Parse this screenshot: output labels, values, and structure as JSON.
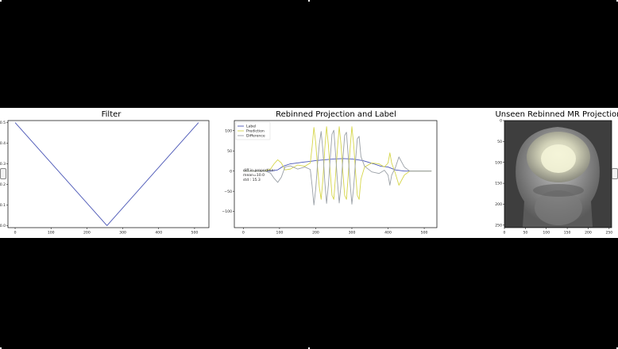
{
  "chart_data": [
    {
      "type": "line",
      "title": "Filter",
      "xlim": [
        -20,
        540
      ],
      "ylim": [
        -0.01,
        0.51
      ],
      "xticks": [
        0,
        100,
        200,
        300,
        400,
        500
      ],
      "yticks": [
        0.0,
        0.1,
        0.2,
        0.3,
        0.4,
        0.5
      ],
      "ytick_labels": [
        "0.0",
        "0.1",
        "0.2",
        "0.3",
        "0.4",
        "0.5"
      ],
      "series": [
        {
          "color": "#4a56b6",
          "x": [
            0,
            256,
            511
          ],
          "y": [
            0.5,
            0.0,
            0.5
          ]
        }
      ]
    },
    {
      "type": "line",
      "title": "Rebinned Projection and Label",
      "xlim": [
        -25,
        535
      ],
      "ylim": [
        -140,
        125
      ],
      "xticks": [
        0,
        100,
        200,
        300,
        400,
        500
      ],
      "yticks": [
        -100,
        -50,
        0,
        50,
        100
      ],
      "ytick_labels": [
        "−100",
        "−50",
        "0",
        "50",
        "100"
      ],
      "legend": {
        "placement": "top-left",
        "entries": [
          "Label",
          "Prediction",
          "Difference"
        ]
      },
      "annotation": {
        "lines": [
          "diff in proportion:",
          "mean=10.0",
          "std : 15.3"
        ],
        "x": 5,
        "y": 20
      },
      "series": [
        {
          "name": "Label",
          "color": "#4a56b6",
          "x": [
            0,
            50,
            75,
            95,
            110,
            130,
            150,
            165,
            185,
            200,
            225,
            250,
            275,
            300,
            315,
            330,
            345,
            360,
            380,
            400,
            420,
            445,
            470,
            500,
            520
          ],
          "y": [
            0,
            0,
            0,
            3,
            12,
            18,
            20,
            22,
            24,
            26,
            28,
            30,
            31,
            30,
            28,
            26,
            22,
            18,
            12,
            10,
            3,
            0,
            0,
            0,
            0
          ]
        },
        {
          "name": "Prediction",
          "color": "#d6d64a",
          "x": [
            0,
            60,
            75,
            85,
            95,
            105,
            115,
            130,
            150,
            170,
            185,
            190,
            195,
            200,
            205,
            210,
            215,
            220,
            225,
            230,
            235,
            240,
            245,
            250,
            255,
            260,
            265,
            270,
            275,
            280,
            285,
            290,
            295,
            300,
            305,
            310,
            315,
            320,
            325,
            335,
            355,
            375,
            390,
            400,
            405,
            410,
            420,
            430,
            445,
            460,
            520
          ],
          "y": [
            0,
            0,
            5,
            18,
            28,
            20,
            3,
            5,
            15,
            12,
            20,
            60,
            108,
            70,
            10,
            -40,
            -70,
            -20,
            55,
            110,
            65,
            0,
            -60,
            -70,
            -10,
            55,
            110,
            65,
            0,
            -60,
            -70,
            -10,
            55,
            110,
            65,
            0,
            -60,
            -70,
            -20,
            10,
            20,
            18,
            10,
            20,
            45,
            20,
            -5,
            -35,
            -10,
            0,
            0
          ]
        },
        {
          "name": "Difference",
          "color": "#9aa0a6",
          "x": [
            0,
            60,
            75,
            85,
            95,
            105,
            115,
            130,
            150,
            170,
            185,
            190,
            195,
            200,
            205,
            210,
            215,
            220,
            225,
            230,
            235,
            240,
            245,
            250,
            255,
            260,
            265,
            270,
            275,
            280,
            285,
            290,
            295,
            300,
            305,
            310,
            315,
            320,
            325,
            335,
            355,
            375,
            390,
            400,
            405,
            410,
            420,
            430,
            445,
            460,
            520
          ],
          "y": [
            0,
            0,
            -5,
            -18,
            -28,
            -15,
            10,
            13,
            5,
            10,
            4,
            -36,
            -84,
            -44,
            17,
            67,
            98,
            50,
            -25,
            -80,
            -35,
            30,
            91,
            101,
            41,
            -25,
            -79,
            -35,
            29,
            88,
            96,
            36,
            -29,
            -82,
            -39,
            24,
            80,
            86,
            36,
            12,
            -2,
            -6,
            2,
            -10,
            -35,
            -10,
            8,
            35,
            10,
            0,
            0
          ]
        }
      ]
    },
    {
      "type": "heatmap",
      "title": "Unseen Rebinned MR Projection",
      "xlim": [
        0,
        256
      ],
      "ylim": [
        256,
        0
      ],
      "xticks": [
        0,
        50,
        100,
        150,
        200,
        250
      ],
      "yticks": [
        0,
        50,
        100,
        150,
        200,
        250
      ],
      "colormap": "gray"
    }
  ]
}
